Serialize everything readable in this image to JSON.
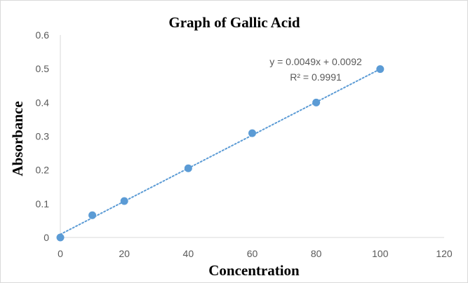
{
  "chart_data": {
    "type": "scatter",
    "title": "Graph of Gallic Acid",
    "xlabel": "Concentration",
    "ylabel": "Absorbance",
    "xlim": [
      0,
      120
    ],
    "ylim": [
      0,
      0.6
    ],
    "xticks": [
      "0",
      "20",
      "40",
      "60",
      "80",
      "100",
      "120"
    ],
    "yticks": [
      "0",
      "0.1",
      "0.2",
      "0.3",
      "0.4",
      "0.5",
      "0.6"
    ],
    "grid": false,
    "legend": "none",
    "series": [
      {
        "x": [
          0,
          10,
          20,
          40,
          60,
          80,
          100
        ],
        "y": [
          0,
          0.066,
          0.108,
          0.205,
          0.309,
          0.4,
          0.499
        ],
        "color": "#5b9bd5"
      }
    ],
    "trendline": {
      "type": "linear",
      "slope": 0.0049,
      "intercept": 0.0092,
      "style": "dotted",
      "color": "#5b9bd5",
      "equation_label": "y = 0.0049x + 0.0092",
      "r2_label": "R² = 0.9991"
    }
  }
}
